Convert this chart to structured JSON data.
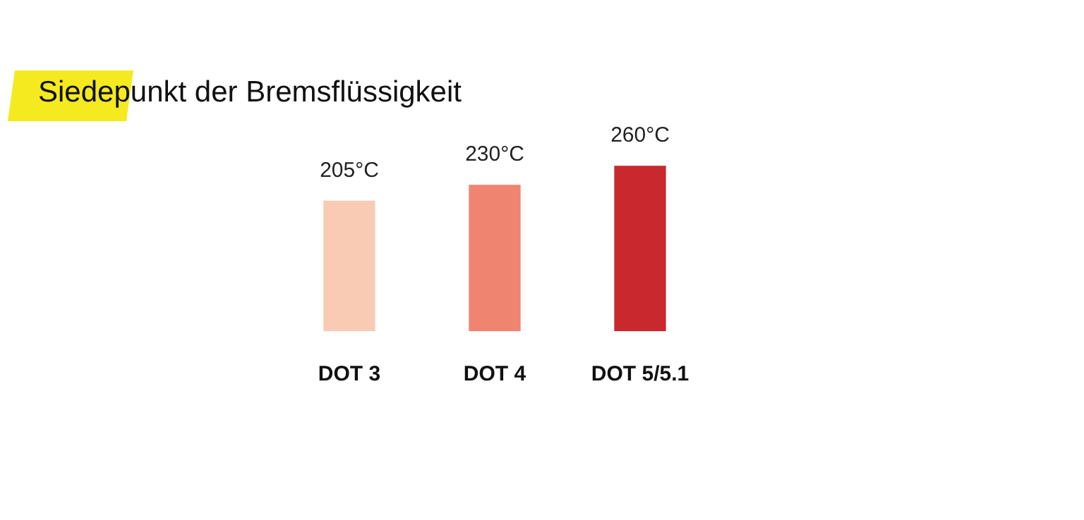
{
  "chart_data": {
    "type": "bar",
    "title": "Siedepunkt der Bremsflüssigkeit",
    "categories": [
      "DOT 3",
      "DOT 4",
      "DOT 5/5.1"
    ],
    "values": [
      205,
      230,
      260
    ],
    "colors": [
      "#f9cbb4",
      "#ef8570",
      "#c9282f"
    ],
    "value_labels": [
      "205°C",
      "230°C",
      "260°C"
    ],
    "tick_labels": "x",
    "grid": false,
    "legend": false
  }
}
